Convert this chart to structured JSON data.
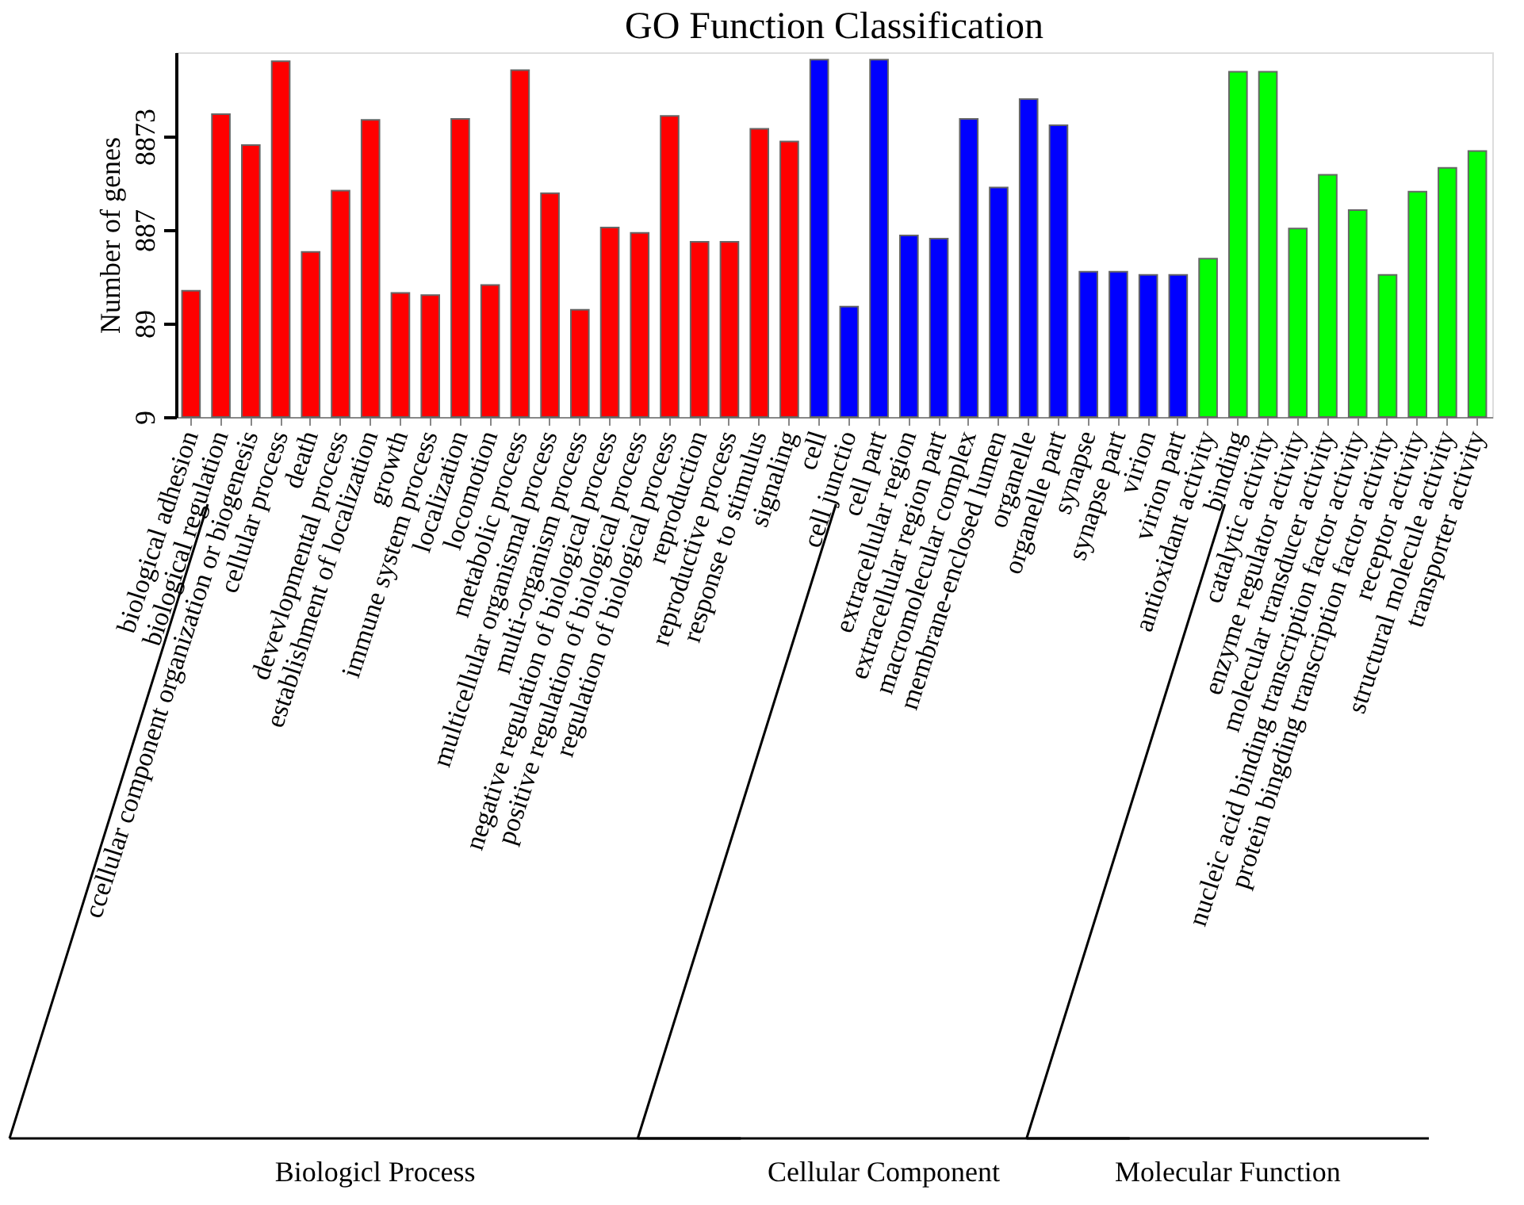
{
  "chart_data": {
    "type": "bar",
    "title": "GO Function  Classification",
    "ylabel": "Number of genes",
    "categories": [
      "biological adhesion",
      "biological regulation",
      "ccellular component organization or biogenesis",
      "cellular process",
      "death",
      "devevlopmental process",
      "establishment of localization",
      "growth",
      "immune system process",
      "localization",
      "locomotion",
      "metabolic process",
      "multicellular organismal process",
      "multi-organism process",
      "negative regulation of biological process",
      "positive regulation of biological process",
      "regulation of biological process",
      "reproduction",
      "reproductive process",
      "response to stimulus",
      "signaling",
      "cell",
      "cell junctio",
      "cell part",
      "extracellular region",
      "extracellular region part",
      "macromolecular complex",
      "membrane-enclosed lumen",
      "organelle",
      "organelle part",
      "synapse",
      "synapse part",
      "virion",
      "virion part",
      "antioxidant activity",
      "binding",
      "catalytic activity",
      "enzyme regulator activity",
      "molecular transducer activity",
      "nucleic acid binding transcription factor activity",
      "protein bingding transcription factor activity",
      "receptor activity",
      "structural molecule activity",
      "transporter activity"
    ],
    "values": [
      198,
      15300,
      7130,
      56300,
      516,
      2330,
      13300,
      188,
      178,
      13600,
      228,
      45100,
      2180,
      124,
      940,
      824,
      14600,
      662,
      662,
      10650,
      7800,
      58500,
      134,
      58500,
      774,
      716,
      13600,
      2520,
      22100,
      11650,
      316,
      316,
      293,
      293,
      437,
      43300,
      43300,
      917,
      3440,
      1440,
      293,
      2270,
      4070,
      6180
    ],
    "colors": [
      "#ff0000",
      "#ff0000",
      "#ff0000",
      "#ff0000",
      "#ff0000",
      "#ff0000",
      "#ff0000",
      "#ff0000",
      "#ff0000",
      "#ff0000",
      "#ff0000",
      "#ff0000",
      "#ff0000",
      "#ff0000",
      "#ff0000",
      "#ff0000",
      "#ff0000",
      "#ff0000",
      "#ff0000",
      "#ff0000",
      "#ff0000",
      "#0000ff",
      "#0000ff",
      "#0000ff",
      "#0000ff",
      "#0000ff",
      "#0000ff",
      "#0000ff",
      "#0000ff",
      "#0000ff",
      "#0000ff",
      "#0000ff",
      "#0000ff",
      "#0000ff",
      "#00ff00",
      "#00ff00",
      "#00ff00",
      "#00ff00",
      "#00ff00",
      "#00ff00",
      "#00ff00",
      "#00ff00",
      "#00ff00",
      "#00ff00"
    ],
    "log": true,
    "ylim": [
      8.873,
      70000
    ],
    "yticks": [
      {
        "value": 8.873,
        "label": "9"
      },
      {
        "value": 88.73,
        "label": "89"
      },
      {
        "value": 887.3,
        "label": "887"
      },
      {
        "value": 8873,
        "label": "8873"
      }
    ],
    "grid": false,
    "annotations": [
      "Biologicl Process",
      "Cellular Component",
      "Molecular Function"
    ]
  }
}
